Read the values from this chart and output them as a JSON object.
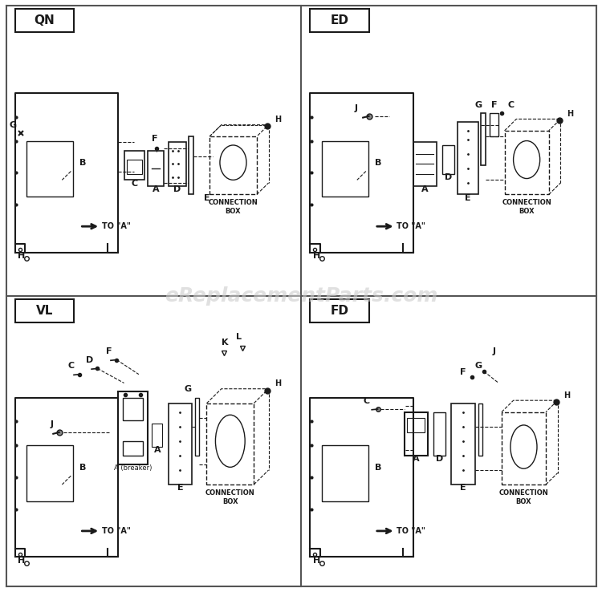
{
  "panels": [
    "QN",
    "ED",
    "VL",
    "FD"
  ],
  "bg_color": "#ffffff",
  "line_color": "#1a1a1a",
  "label_color": "#000000",
  "watermark": "eReplacementParts.com",
  "watermark_color": "#cccccc"
}
